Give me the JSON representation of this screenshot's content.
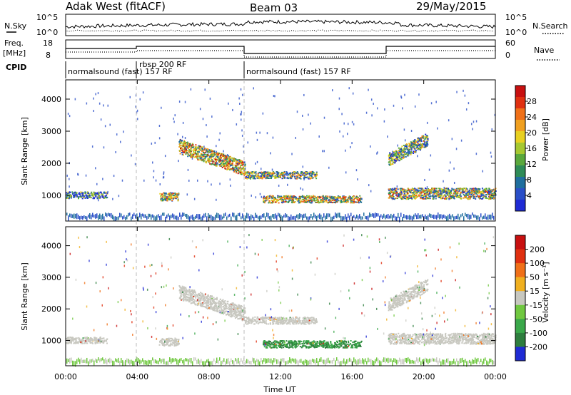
{
  "header": {
    "station": "Adak West (fitACF)",
    "beam": "Beam 03",
    "date": "29/May/2015"
  },
  "top_panel": {
    "left_label": "N.Sky",
    "right_label": "N.Search",
    "left_ticks": [
      "10^5",
      "10^0"
    ],
    "right_ticks": [
      "10^5",
      "10^0"
    ]
  },
  "freq_panel": {
    "left_label_1": "Freq.",
    "left_label_2": "[MHz]",
    "right_label": "Nave",
    "left_ticks": [
      "18",
      "8"
    ],
    "right_ticks": [
      "60",
      "0"
    ]
  },
  "cpid": {
    "label": "CPID",
    "segments": [
      "normalsound (fast) 157 RF",
      "rbsp 200 RF",
      "normalsound (fast) 157 RF"
    ]
  },
  "chart_data": [
    {
      "type": "heatmap",
      "title": "",
      "xlabel": "",
      "ylabel": "Slant Range [km]",
      "yticks": [
        "1000",
        "2000",
        "3000",
        "4000"
      ],
      "ylim": [
        200,
        4600
      ],
      "xlim": [
        0,
        24
      ],
      "colorbar": {
        "label": "Power [dB]",
        "ticks": [
          "4",
          "8",
          "12",
          "16",
          "20",
          "24",
          "28"
        ],
        "colors": [
          "#1f2bd4",
          "#2a4fc8",
          "#1f6e9e",
          "#2e8b57",
          "#5aa83c",
          "#a6c830",
          "#e8d020",
          "#f0a020",
          "#f07018",
          "#e03010",
          "#c81010"
        ]
      },
      "features": [
        {
          "t0": 0.0,
          "t1": 2.3,
          "r0": 800,
          "r1": 1250,
          "level": 0.25
        },
        {
          "t0": 5.2,
          "t1": 6.3,
          "r0": 700,
          "r1": 1250,
          "level": 0.5
        },
        {
          "t0": 6.3,
          "t1": 10.0,
          "r0": 1700,
          "r1": 2700,
          "level": 0.6
        },
        {
          "t0": 10.0,
          "t1": 14.0,
          "r0": 1400,
          "r1": 1900,
          "level": 0.45
        },
        {
          "t0": 11.0,
          "t1": 16.5,
          "r0": 650,
          "r1": 1150,
          "level": 0.55
        },
        {
          "t0": 18.0,
          "t1": 20.2,
          "r0": 2000,
          "r1": 2900,
          "level": 0.4
        },
        {
          "t0": 18.0,
          "t1": 24.0,
          "r0": 700,
          "r1": 1450,
          "level": 0.5
        }
      ]
    },
    {
      "type": "heatmap",
      "title": "",
      "xlabel": "Time UT",
      "ylabel": "Slant Range [km]",
      "xticks": [
        "00:00",
        "04:00",
        "08:00",
        "12:00",
        "16:00",
        "20:00",
        "00:00"
      ],
      "yticks": [
        "1000",
        "2000",
        "3000",
        "4000"
      ],
      "ylim": [
        200,
        4600
      ],
      "xlim": [
        0,
        24
      ],
      "colorbar": {
        "label": "Velocity [m s⁻¹]",
        "ticks": [
          "200",
          "100",
          "50",
          "15",
          "-15",
          "-50",
          "-100",
          "-200"
        ],
        "colors": [
          "#1f2bd4",
          "#2e7e3e",
          "#3aa84a",
          "#70c840",
          "#c8c8c0",
          "#f0b020",
          "#f07018",
          "#e03010",
          "#c81010"
        ]
      },
      "features": [
        {
          "t0": 0.0,
          "t1": 2.3,
          "r0": 800,
          "r1": 1250,
          "level": 0.0
        },
        {
          "t0": 5.2,
          "t1": 6.3,
          "r0": 700,
          "r1": 1250,
          "level": 0.0
        },
        {
          "t0": 6.3,
          "t1": 10.0,
          "r0": 1700,
          "r1": 2700,
          "level": 0.0
        },
        {
          "t0": 10.0,
          "t1": 14.0,
          "r0": 1400,
          "r1": 1900,
          "level": 0.0
        },
        {
          "t0": 11.0,
          "t1": 16.5,
          "r0": 650,
          "r1": 1150,
          "level": -0.6
        },
        {
          "t0": 18.0,
          "t1": 20.2,
          "r0": 2000,
          "r1": 2900,
          "level": 0.0
        },
        {
          "t0": 18.0,
          "t1": 24.0,
          "r0": 700,
          "r1": 1450,
          "level": 0.0
        }
      ]
    }
  ]
}
